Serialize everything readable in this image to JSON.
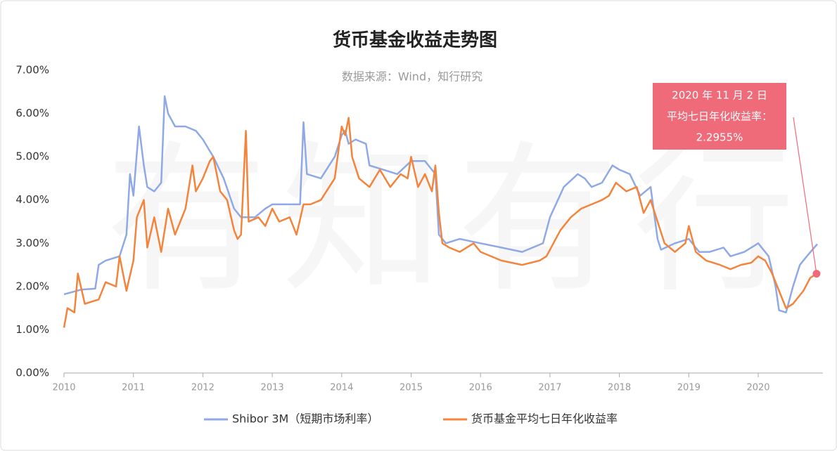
{
  "chart_data": {
    "type": "line",
    "title": "货币基金收益走势图",
    "subtitle": "数据来源：Wind，知行研究",
    "watermark": "有知有行",
    "xlim": [
      2010,
      2021
    ],
    "xticks": [
      2010,
      2011,
      2012,
      2013,
      2014,
      2015,
      2016,
      2017,
      2018,
      2019,
      2020
    ],
    "ylim": [
      0,
      7
    ],
    "yticks": [
      {
        "value": 0,
        "label": "0.00%"
      },
      {
        "value": 1,
        "label": "1.00%"
      },
      {
        "value": 2,
        "label": "2.00%"
      },
      {
        "value": 3,
        "label": "3.00%"
      },
      {
        "value": 4,
        "label": "4.00%"
      },
      {
        "value": 5,
        "label": "5.00%"
      },
      {
        "value": 6,
        "label": "6.00%"
      },
      {
        "value": 7,
        "label": "7.00%"
      }
    ],
    "legend": "bottom",
    "series": [
      {
        "name": "Shibor 3M（短期市场利率）",
        "color": "#8fa9e6",
        "x": [
          2010.0,
          2010.25,
          2010.45,
          2010.5,
          2010.6,
          2010.8,
          2010.9,
          2010.95,
          2011.0,
          2011.08,
          2011.15,
          2011.2,
          2011.3,
          2011.4,
          2011.45,
          2011.5,
          2011.6,
          2011.75,
          2011.9,
          2012.0,
          2012.15,
          2012.3,
          2012.45,
          2012.55,
          2012.75,
          2012.9,
          2013.0,
          2013.25,
          2013.4,
          2013.45,
          2013.5,
          2013.7,
          2013.9,
          2014.0,
          2014.05,
          2014.1,
          2014.2,
          2014.35,
          2014.4,
          2014.6,
          2014.8,
          2015.0,
          2015.2,
          2015.35,
          2015.4,
          2015.5,
          2015.7,
          2016.0,
          2016.3,
          2016.6,
          2016.9,
          2017.0,
          2017.2,
          2017.4,
          2017.5,
          2017.6,
          2017.75,
          2017.9,
          2018.0,
          2018.15,
          2018.3,
          2018.45,
          2018.55,
          2018.6,
          2018.8,
          2019.0,
          2019.15,
          2019.3,
          2019.5,
          2019.6,
          2019.8,
          2020.0,
          2020.15,
          2020.25,
          2020.3,
          2020.4,
          2020.5,
          2020.6,
          2020.7,
          2020.85
        ],
        "values": [
          1.82,
          1.93,
          1.95,
          2.5,
          2.6,
          2.7,
          3.2,
          4.6,
          4.1,
          5.7,
          4.8,
          4.3,
          4.2,
          4.4,
          6.4,
          6.0,
          5.7,
          5.7,
          5.6,
          5.4,
          5.0,
          4.5,
          3.8,
          3.6,
          3.6,
          3.8,
          3.9,
          3.9,
          3.9,
          5.8,
          4.6,
          4.5,
          5.0,
          5.5,
          5.6,
          5.3,
          5.4,
          5.3,
          4.8,
          4.7,
          4.6,
          4.9,
          4.9,
          4.6,
          3.2,
          3.0,
          3.1,
          3.0,
          2.9,
          2.8,
          3.0,
          3.6,
          4.3,
          4.6,
          4.5,
          4.3,
          4.4,
          4.8,
          4.7,
          4.6,
          4.1,
          4.3,
          3.1,
          2.85,
          3.0,
          3.1,
          2.8,
          2.8,
          2.9,
          2.7,
          2.8,
          3.0,
          2.7,
          2.0,
          1.45,
          1.4,
          2.0,
          2.5,
          2.7,
          2.98
        ]
      },
      {
        "name": "货币基金平均七日年化收益率",
        "color": "#f4843c",
        "x": [
          2010.0,
          2010.05,
          2010.15,
          2010.2,
          2010.3,
          2010.5,
          2010.6,
          2010.75,
          2010.8,
          2010.9,
          2011.0,
          2011.05,
          2011.15,
          2011.2,
          2011.3,
          2011.4,
          2011.5,
          2011.6,
          2011.75,
          2011.85,
          2011.9,
          2012.0,
          2012.1,
          2012.15,
          2012.25,
          2012.35,
          2012.45,
          2012.5,
          2012.55,
          2012.62,
          2012.66,
          2012.8,
          2012.9,
          2013.0,
          2013.1,
          2013.25,
          2013.35,
          2013.45,
          2013.55,
          2013.7,
          2013.9,
          2014.0,
          2014.05,
          2014.1,
          2014.15,
          2014.25,
          2014.4,
          2014.55,
          2014.7,
          2014.85,
          2014.95,
          2015.0,
          2015.1,
          2015.2,
          2015.3,
          2015.35,
          2015.4,
          2015.45,
          2015.55,
          2015.7,
          2015.9,
          2016.0,
          2016.3,
          2016.6,
          2016.85,
          2016.95,
          2017.05,
          2017.15,
          2017.3,
          2017.45,
          2017.6,
          2017.75,
          2017.85,
          2017.95,
          2018.1,
          2018.25,
          2018.35,
          2018.45,
          2018.55,
          2018.65,
          2018.8,
          2018.95,
          2019.0,
          2019.1,
          2019.25,
          2019.45,
          2019.6,
          2019.75,
          2019.9,
          2020.0,
          2020.1,
          2020.2,
          2020.3,
          2020.4,
          2020.5,
          2020.65,
          2020.75,
          2020.84
        ],
        "values": [
          1.05,
          1.5,
          1.4,
          2.3,
          1.6,
          1.7,
          2.1,
          2.0,
          2.7,
          1.9,
          2.6,
          3.6,
          4.0,
          2.9,
          3.6,
          2.8,
          3.8,
          3.2,
          3.8,
          4.8,
          4.2,
          4.5,
          4.9,
          5.0,
          4.2,
          4.0,
          3.3,
          3.1,
          3.2,
          5.6,
          3.5,
          3.6,
          3.4,
          3.8,
          3.5,
          3.6,
          3.2,
          3.9,
          3.9,
          4.0,
          4.5,
          5.7,
          5.5,
          5.9,
          5.0,
          4.5,
          4.3,
          4.7,
          4.3,
          4.6,
          4.5,
          5.0,
          4.3,
          4.6,
          4.2,
          4.8,
          3.7,
          3.0,
          2.9,
          2.8,
          3.0,
          2.8,
          2.6,
          2.5,
          2.6,
          2.7,
          3.0,
          3.3,
          3.6,
          3.8,
          3.9,
          4.0,
          4.1,
          4.4,
          4.2,
          4.3,
          3.7,
          4.0,
          3.5,
          3.0,
          2.8,
          3.0,
          3.4,
          2.8,
          2.6,
          2.5,
          2.4,
          2.5,
          2.55,
          2.7,
          2.6,
          2.3,
          1.9,
          1.5,
          1.6,
          1.9,
          2.2,
          2.2955
        ]
      }
    ],
    "annotation": {
      "lines": [
        "2020 年 11 月 2 日",
        "平均七日年化收益率：",
        "2.2955%"
      ],
      "color": "#ef6b7a"
    }
  }
}
